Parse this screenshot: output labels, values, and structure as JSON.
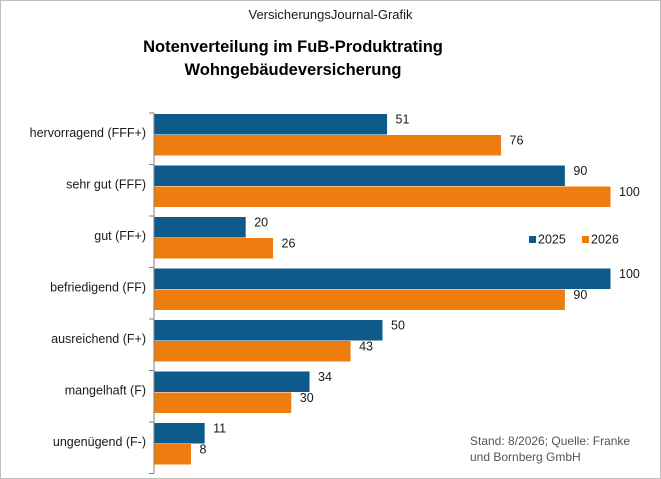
{
  "header": "VersicherungsJournal-Grafik",
  "chart_data": {
    "type": "bar",
    "orientation": "horizontal",
    "title": [
      "Notenverteilung im FuB-Produktrating",
      "Wohngebäudeversicherung"
    ],
    "categories": [
      "hervorragend (FFF+)",
      "sehr gut (FFF)",
      "gut (FF+)",
      "befriedigend (FF)",
      "ausreichend (F+)",
      "mangelhaft (F)",
      "ungenügend (F-)"
    ],
    "series": [
      {
        "name": "2025",
        "color": "#0e5a8a",
        "values": [
          51,
          90,
          20,
          100,
          50,
          34,
          11
        ]
      },
      {
        "name": "2026",
        "color": "#ed7d0e",
        "values": [
          76,
          100,
          26,
          90,
          43,
          30,
          8
        ]
      }
    ],
    "xlim": [
      0,
      100
    ],
    "grid": false,
    "legend_position": "right"
  },
  "source": [
    "Stand: 8/2026; Quelle: Franke",
    "und Bornberg GmbH"
  ]
}
